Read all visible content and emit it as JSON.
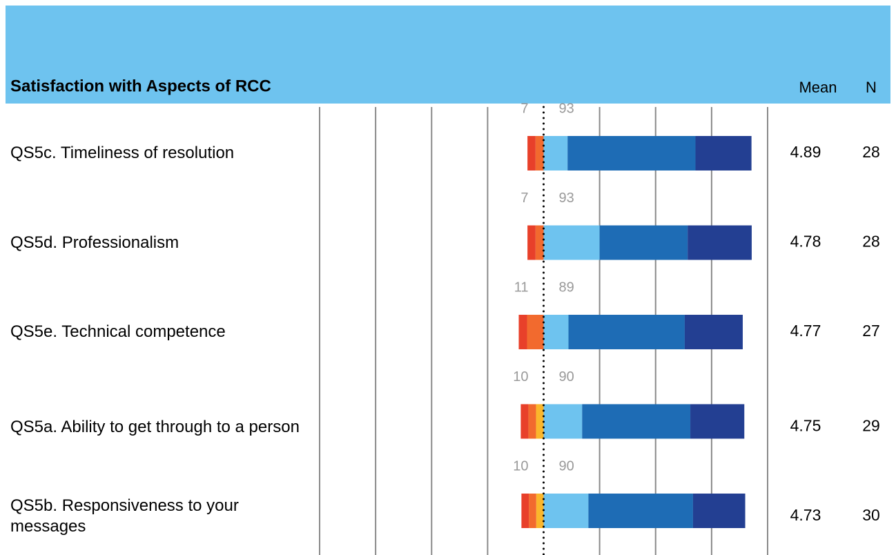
{
  "chart_data": {
    "type": "diverging_bar",
    "title": "Satisfaction with Aspects of RCC",
    "mean_label": "Mean",
    "n_label": "N",
    "categories": [
      "QS5c. Timeliness of resolution",
      "QS5d. Professionalism",
      "QS5e. Technical competence",
      "QS5a. Ability to get through to a person",
      "QS5b. Responsiveness to your messages"
    ],
    "series": [
      {
        "color": "#e8402a",
        "values": [
          -3.6,
          -3.6,
          -3.7,
          -3.4,
          -3.3
        ]
      },
      {
        "color": "#f26a2e",
        "values": [
          -3.6,
          -3.6,
          -7.4,
          -3.4,
          -3.3
        ]
      },
      {
        "color": "#fbb62b",
        "values": [
          0,
          0,
          0,
          -3.4,
          -3.3
        ]
      },
      {
        "color": "#6ec3ef",
        "values": [
          10.7,
          25,
          11.1,
          17.2,
          20
        ]
      },
      {
        "color": "#1e6cb5",
        "values": [
          57.1,
          39.3,
          51.9,
          48.3,
          46.7
        ]
      },
      {
        "color": "#233f92",
        "values": [
          25,
          28.6,
          25.9,
          24.1,
          23.3
        ]
      }
    ],
    "negative_totals": [
      7,
      7,
      11,
      10,
      10
    ],
    "positive_totals": [
      93,
      93,
      89,
      90,
      90
    ],
    "means": [
      4.89,
      4.78,
      4.77,
      4.75,
      4.73
    ],
    "n": [
      28,
      28,
      27,
      29,
      30
    ],
    "xlim": [
      -100,
      100
    ],
    "xticks": [
      -100,
      -75,
      -50,
      -25,
      0,
      25,
      50,
      75,
      100
    ],
    "grid": true
  }
}
